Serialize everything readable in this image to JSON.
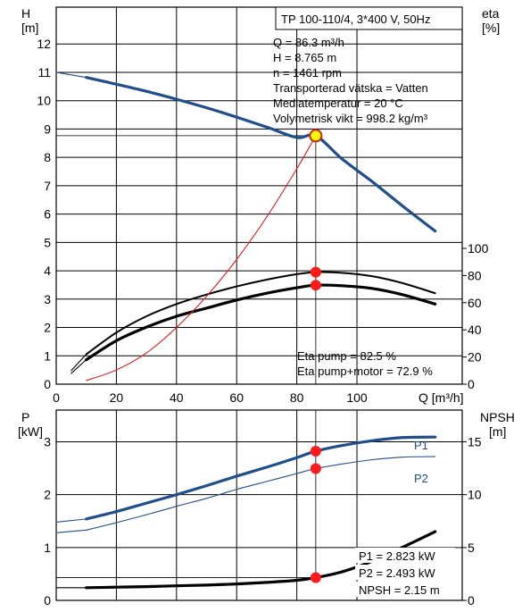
{
  "chart_data": [
    {
      "type": "line",
      "id": "performance",
      "pump_label": "TP 100-110/4, 3*400 V, 50Hz",
      "info_lines": [
        "Q = 86.3 m³/h",
        "H = 8.765 m",
        "n = 1461 rpm",
        "Transporterad vätska = Vatten",
        "Mediatemperatur = 20 °C",
        "Volymetrisk vikt = 998.2 kg/m³"
      ],
      "eta_lines": [
        "Eta pump = 82.5 %",
        "Eta pump+motor = 72.9 %"
      ],
      "ylabel_left": [
        "H",
        "[m]"
      ],
      "ylabel_right": [
        "eta",
        "[%]"
      ],
      "xlabel": "Q [m³/h]",
      "x_ticks": [
        0,
        20,
        40,
        60,
        80,
        100
      ],
      "xlim": [
        0,
        135
      ],
      "y_ticks_left": [
        0,
        1,
        2,
        3,
        4,
        5,
        6,
        7,
        8,
        9,
        10,
        11,
        12
      ],
      "ylim_left": [
        0,
        13.3
      ],
      "y_ticks_right": [
        0,
        20,
        40,
        60,
        80,
        100
      ],
      "grid": true,
      "series": [
        {
          "axis": "left",
          "color": "#1f4e8c",
          "style": "thick",
          "x": [
            10,
            20,
            30,
            40,
            50,
            60,
            70,
            80,
            86.3,
            95,
            105,
            115,
            126
          ],
          "y": [
            10.82,
            10.58,
            10.33,
            10.05,
            9.75,
            9.42,
            9.07,
            8.7,
            8.765,
            7.95,
            7.15,
            6.3,
            5.4
          ]
        },
        {
          "axis": "left",
          "color": "#1f4e8c",
          "style": "thin",
          "x": [
            0,
            10
          ],
          "y": [
            11.0,
            10.82
          ]
        },
        {
          "axis": "right",
          "color": "#000000",
          "style": "medium",
          "x": [
            10,
            20,
            30,
            40,
            50,
            60,
            70,
            80,
            86.3,
            95,
            105,
            115,
            126
          ],
          "y": [
            22,
            38,
            50,
            59,
            66,
            72,
            77,
            81,
            82.5,
            82,
            79.5,
            74.5,
            67
          ]
        },
        {
          "axis": "right",
          "color": "#000000",
          "style": "thick",
          "x": [
            10,
            20,
            30,
            40,
            50,
            60,
            70,
            80,
            86.3,
            95,
            105,
            115,
            126
          ],
          "y": [
            18,
            32,
            42,
            50,
            56,
            62,
            67,
            71,
            72.9,
            72.5,
            70.5,
            66,
            59
          ]
        },
        {
          "axis": "right",
          "color": "#000000",
          "style": "thin",
          "x": [
            5,
            10
          ],
          "y": [
            10,
            22
          ]
        },
        {
          "axis": "right",
          "color": "#000000",
          "style": "thin",
          "x": [
            5,
            10
          ],
          "y": [
            8,
            18
          ]
        },
        {
          "axis": "left",
          "color": "#e02020",
          "style": "thin",
          "x": [
            10,
            20,
            30,
            40,
            50,
            60,
            70,
            80,
            86.3
          ],
          "y": [
            0.13,
            0.5,
            1.1,
            2.0,
            3.1,
            4.4,
            5.9,
            7.6,
            8.765
          ]
        }
      ],
      "operating_points": [
        {
          "x": 86.3,
          "y": 8.765,
          "axis": "left",
          "highlight": true
        },
        {
          "x": 86.3,
          "y": 82.5,
          "axis": "right"
        },
        {
          "x": 86.3,
          "y": 72.9,
          "axis": "right"
        }
      ]
    },
    {
      "type": "line",
      "id": "power",
      "ylabel_left": [
        "P",
        "[kW]"
      ],
      "ylabel_right": [
        "NPSH",
        "[m]"
      ],
      "y_ticks_left": [
        0,
        1,
        2,
        3
      ],
      "ylim_left": [
        0,
        3.6
      ],
      "y_ticks_right": [
        0,
        5,
        10,
        15
      ],
      "ylim_right": [
        0,
        18
      ],
      "xlim": [
        0,
        135
      ],
      "grid": true,
      "series_labels": [
        "P1",
        "P2"
      ],
      "value_lines": [
        "P1 = 2.823 kW",
        "P2 = 2.493 kW",
        "NPSH = 2.15 m"
      ],
      "series": [
        {
          "name": "P1",
          "axis": "left",
          "color": "#1f4e8c",
          "style": "thick",
          "x": [
            10,
            20,
            30,
            40,
            50,
            60,
            70,
            80,
            86.3,
            95,
            105,
            115,
            126
          ],
          "y": [
            1.54,
            1.68,
            1.84,
            2.0,
            2.17,
            2.35,
            2.52,
            2.7,
            2.823,
            2.93,
            3.02,
            3.08,
            3.09
          ]
        },
        {
          "name": "P2",
          "axis": "left",
          "color": "#1f4e8c",
          "style": "thin",
          "x": [
            10,
            20,
            30,
            40,
            50,
            60,
            70,
            80,
            86.3,
            95,
            105,
            115,
            126
          ],
          "y": [
            1.33,
            1.47,
            1.62,
            1.78,
            1.93,
            2.1,
            2.25,
            2.4,
            2.493,
            2.58,
            2.66,
            2.71,
            2.72
          ]
        },
        {
          "axis": "left",
          "color": "#1f4e8c",
          "style": "thin",
          "x": [
            0,
            10
          ],
          "y": [
            1.48,
            1.54
          ]
        },
        {
          "axis": "left",
          "color": "#1f4e8c",
          "style": "thin",
          "x": [
            0,
            10
          ],
          "y": [
            1.28,
            1.33
          ]
        },
        {
          "name": "NPSH",
          "axis": "right",
          "color": "#000000",
          "style": "thick",
          "x": [
            10,
            20,
            30,
            40,
            50,
            60,
            70,
            80,
            86.3,
            95,
            105,
            115,
            126
          ],
          "y": [
            1.2,
            1.25,
            1.3,
            1.38,
            1.45,
            1.55,
            1.7,
            1.9,
            2.15,
            2.7,
            3.7,
            5.0,
            6.5
          ]
        },
        {
          "axis": "right",
          "color": "#000000",
          "style": "thin",
          "x": [
            0,
            10
          ],
          "y": [
            1.2,
            1.2
          ]
        }
      ],
      "operating_points": [
        {
          "x": 86.3,
          "y": 2.823,
          "axis": "left"
        },
        {
          "x": 86.3,
          "y": 2.493,
          "axis": "left"
        },
        {
          "x": 86.3,
          "y": 2.15,
          "axis": "right"
        }
      ]
    }
  ]
}
